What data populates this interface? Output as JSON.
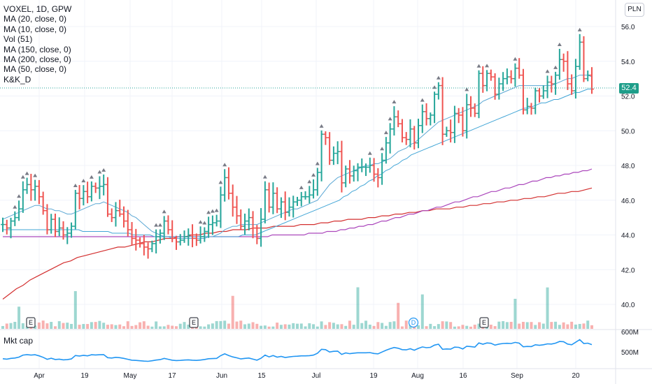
{
  "header": {
    "title": "VOXEL, 1D, GPW",
    "indicators": [
      "MA (20, close, 0)",
      "MA (10, close, 0)",
      "Vol (51)",
      "MA (150, close, 0)",
      "MA (200, close, 0)",
      "MA (50, close, 0)",
      "K&K_D"
    ],
    "currency": "PLN",
    "last_price": "52.4"
  },
  "mktcap_pane": {
    "label": "Mkt cap",
    "y_ticks": [
      "600M",
      "500M"
    ]
  },
  "chart_data": {
    "type": "line",
    "price_axis": {
      "ticks": [
        "56.0",
        "54.0",
        "52.0",
        "50.0",
        "48.0",
        "46.0",
        "44.0",
        "42.0",
        "40.0"
      ],
      "ylim": [
        38.6,
        56.8
      ]
    },
    "x_axis": {
      "ticks": [
        "Apr",
        "19",
        "May",
        "17",
        "Jun",
        "15",
        "Jul",
        "19",
        "Aug",
        "16",
        "Sep",
        "20"
      ]
    },
    "price_bars_close": [
      44.6,
      44.4,
      44.8,
      45.0,
      45.5,
      46.6,
      46.9,
      46.6,
      46.8,
      46.2,
      45.4,
      44.3,
      44.9,
      44.2,
      44.4,
      44.0,
      44.1,
      44.5,
      46.4,
      46.1,
      46.5,
      46.2,
      46.8,
      46.7,
      46.8,
      46.9,
      45.2,
      45.0,
      45.4,
      45.2,
      44.8,
      44.3,
      43.8,
      43.7,
      43.5,
      43.3,
      43.2,
      43.5,
      43.9,
      44.1,
      44.8,
      44.3,
      43.8,
      43.6,
      43.7,
      43.9,
      44.0,
      43.8,
      43.7,
      43.9,
      44.2,
      44.6,
      44.7,
      44.8,
      46.3,
      47.3,
      46.4,
      45.6,
      45.1,
      44.5,
      44.8,
      45.0,
      44.4,
      43.8,
      44.9,
      46.6,
      45.6,
      46.4,
      45.5,
      45.9,
      45.3,
      45.6,
      45.9,
      46.0,
      46.2,
      46.2,
      46.3,
      46.6,
      47.6,
      49.8,
      49.6,
      48.3,
      48.7,
      48.8,
      47.0,
      47.8,
      47.4,
      47.7,
      47.9,
      47.9,
      47.9,
      48.0,
      47.5,
      47.3,
      48.3,
      49.3,
      50.1,
      50.8,
      50.4,
      49.6,
      49.5,
      50.1,
      49.3,
      50.3,
      51.1,
      50.7,
      50.9,
      52.1,
      52.6,
      49.8,
      50.0,
      49.9,
      51.0,
      50.9,
      50.0,
      51.5,
      51.3,
      51.0,
      53.3,
      52.6,
      53.3,
      53.1,
      52.1,
      52.7,
      53.0,
      53.1,
      53.0,
      53.6,
      53.2,
      51.2,
      51.4,
      51.3,
      52.3,
      52.0,
      52.3,
      52.8,
      52.7,
      53.2,
      54.1,
      54.0,
      52.7,
      52.3,
      53.7,
      55.1,
      53.0,
      53.2,
      52.4
    ],
    "ma_short_20": [
      44.9,
      45.0,
      45.1,
      45.2,
      45.3,
      45.4,
      45.5,
      45.6,
      45.7,
      45.7,
      45.6,
      45.5,
      45.5,
      45.4,
      45.4,
      45.3,
      45.2,
      45.2,
      45.3,
      45.4,
      45.5,
      45.6,
      45.7,
      45.8,
      45.8,
      45.9,
      45.8,
      45.7,
      45.6,
      45.5,
      45.4,
      45.3,
      45.1,
      45.0,
      44.8,
      44.6,
      44.4,
      44.2,
      44.1,
      44.0,
      43.9,
      43.9,
      43.8,
      43.8,
      43.8,
      43.8,
      43.8,
      43.8,
      43.8,
      43.8,
      43.8,
      43.9,
      43.9,
      44.0,
      44.1,
      44.3,
      44.4,
      44.5,
      44.5,
      44.6,
      44.6,
      44.6,
      44.6,
      44.6,
      44.7,
      44.8,
      44.9,
      45.0,
      45.1,
      45.2,
      45.3,
      45.4,
      45.5,
      45.5,
      45.6,
      45.7,
      45.8,
      45.9,
      46.0,
      46.3,
      46.6,
      46.9,
      47.1,
      47.3,
      47.4,
      47.5,
      47.6,
      47.7,
      47.8,
      47.9,
      48.0,
      48.0,
      48.1,
      48.1,
      48.2,
      48.3,
      48.4,
      48.6,
      48.8,
      48.9,
      49.0,
      49.2,
      49.3,
      49.5,
      49.7,
      49.9,
      50.1,
      50.3,
      50.5,
      50.6,
      50.7,
      50.8,
      50.9,
      51.0,
      51.1,
      51.2,
      51.3,
      51.4,
      51.5,
      51.7,
      51.8,
      51.9,
      52.0,
      52.1,
      52.2,
      52.3,
      52.4,
      52.5,
      52.6,
      52.6,
      52.6,
      52.6,
      52.6,
      52.6,
      52.6,
      52.6,
      52.6,
      52.7,
      52.8,
      52.9,
      53.0,
      53.0,
      53.1,
      53.2,
      53.2,
      53.2,
      53.1
    ],
    "ma_50": [
      44.3,
      44.3,
      44.3,
      44.3,
      44.3,
      44.3,
      44.3,
      44.3,
      44.3,
      44.3,
      44.3,
      44.3,
      44.3,
      44.3,
      44.3,
      44.3,
      44.3,
      44.3,
      44.3,
      44.2,
      44.2,
      44.2,
      44.2,
      44.2,
      44.2,
      44.2,
      44.1,
      44.1,
      44.1,
      44.1,
      44.1,
      44.0,
      44.0,
      44.0,
      44.0,
      44.0,
      43.9,
      43.9,
      43.9,
      43.9,
      43.9,
      43.9,
      43.9,
      43.9,
      43.9,
      43.9,
      43.9,
      43.9,
      43.9,
      43.9,
      43.9,
      43.9,
      43.9,
      43.9,
      43.9,
      43.9,
      43.9,
      44.0,
      44.0,
      44.0,
      44.0,
      44.1,
      44.2,
      44.3,
      44.4,
      44.5,
      44.6,
      44.7,
      44.8,
      44.9,
      45.0,
      45.1,
      45.2,
      45.3,
      45.4,
      45.5,
      45.6,
      45.7,
      45.8,
      45.9,
      46.0,
      46.2,
      46.3,
      46.5,
      46.6,
      46.8,
      46.9,
      47.1,
      47.2,
      47.4,
      47.5,
      47.7,
      47.8,
      48.0,
      48.1,
      48.3,
      48.4,
      48.6,
      48.7,
      48.8,
      48.9,
      49.0,
      49.1,
      49.2,
      49.3,
      49.4,
      49.5,
      49.6,
      49.7,
      49.8,
      49.9,
      50.0,
      50.1,
      50.2,
      50.3,
      50.4,
      50.5,
      50.6,
      50.7,
      50.8,
      50.9,
      51.0,
      51.1,
      51.2,
      51.3,
      51.3,
      51.4,
      51.5,
      51.6,
      51.6,
      51.7,
      51.8,
      51.8,
      51.9,
      52.0,
      52.1,
      52.2,
      52.2,
      52.3,
      52.4,
      52.4
    ],
    "ma_150": [
      43.9,
      43.9,
      43.9,
      43.9,
      43.9,
      43.9,
      43.9,
      43.9,
      43.9,
      43.9,
      43.9,
      43.9,
      43.9,
      43.9,
      43.9,
      43.9,
      43.9,
      43.9,
      43.9,
      43.9,
      43.9,
      43.9,
      43.9,
      43.9,
      43.9,
      43.9,
      43.9,
      43.9,
      43.9,
      43.9,
      43.9,
      43.9,
      43.9,
      43.9,
      43.9,
      43.9,
      43.9,
      43.9,
      43.9,
      43.9,
      43.9,
      43.9,
      43.9,
      43.9,
      43.9,
      43.9,
      43.9,
      43.9,
      43.9,
      43.9,
      43.9,
      43.9,
      43.9,
      43.9,
      43.9,
      43.9,
      43.9,
      43.9,
      43.9,
      44.0,
      44.0,
      44.0,
      44.0,
      44.0,
      44.0,
      44.0,
      44.0,
      44.1,
      44.1,
      44.1,
      44.1,
      44.2,
      44.2,
      44.2,
      44.3,
      44.3,
      44.4,
      44.4,
      44.5,
      44.5,
      44.6,
      44.6,
      44.7,
      44.8,
      44.8,
      44.9,
      45.0,
      45.0,
      45.1,
      45.2,
      45.2,
      45.3,
      45.4,
      45.4,
      45.5,
      45.6,
      45.6,
      45.7,
      45.8,
      45.9,
      45.9,
      46.0,
      46.1,
      46.2,
      46.2,
      46.3,
      46.4,
      46.5,
      46.5,
      46.6,
      46.7,
      46.7,
      46.8,
      46.9,
      46.9,
      47.0,
      47.1,
      47.1,
      47.2,
      47.3,
      47.3,
      47.4,
      47.4,
      47.5,
      47.5,
      47.6,
      47.6,
      47.7,
      47.7,
      47.8
    ],
    "ma_200": [
      40.3,
      40.6,
      40.9,
      41.1,
      41.4,
      41.6,
      41.8,
      42.0,
      42.2,
      42.4,
      42.5,
      42.7,
      42.8,
      42.9,
      43.0,
      43.1,
      43.2,
      43.3,
      43.3,
      43.4,
      43.5,
      43.6,
      43.6,
      43.7,
      43.8,
      43.8,
      43.9,
      43.9,
      44.0,
      44.0,
      44.1,
      44.1,
      44.2,
      44.2,
      44.3,
      44.3,
      44.3,
      44.4,
      44.4,
      44.4,
      44.5,
      44.5,
      44.5,
      44.5,
      44.6,
      44.6,
      44.6,
      44.7,
      44.7,
      44.8,
      44.8,
      44.9,
      44.9,
      44.9,
      45.0,
      45.0,
      45.1,
      45.1,
      45.2,
      45.2,
      45.3,
      45.3,
      45.4,
      45.4,
      45.5,
      45.5,
      45.5,
      45.6,
      45.6,
      45.7,
      45.7,
      45.8,
      45.8,
      45.9,
      45.9,
      46.0,
      46.0,
      46.1,
      46.1,
      46.2,
      46.2,
      46.3,
      46.4,
      46.4,
      46.5,
      46.5,
      46.6,
      46.7
    ],
    "volume_bar_count": 147,
    "earnings_events": [
      "E",
      "E",
      "E"
    ],
    "dividend_events": [
      "D"
    ]
  }
}
